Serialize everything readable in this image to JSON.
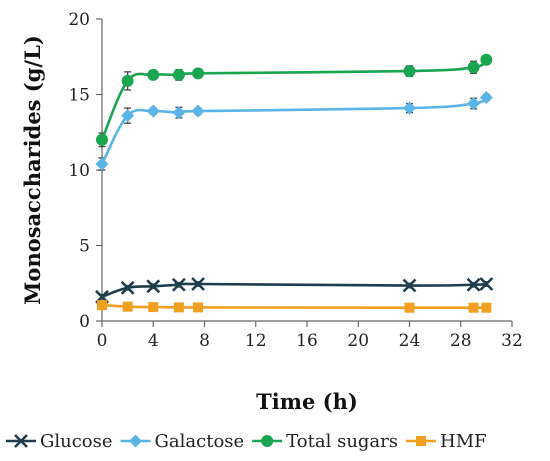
{
  "chart_data": {
    "type": "line",
    "xlabel": "Time (h)",
    "ylabel": "Monosaccharides (g/L)",
    "xlim": [
      0,
      32
    ],
    "ylim": [
      0,
      20
    ],
    "xticks": [
      0,
      4,
      8,
      12,
      16,
      20,
      24,
      28,
      32
    ],
    "yticks": [
      0,
      5,
      10,
      15,
      20
    ],
    "grid": false,
    "legend_position": "bottom",
    "series": [
      {
        "name": "Glucose",
        "marker": "x",
        "color": "#1f3d4c",
        "x": [
          0,
          2,
          4,
          6,
          7.5,
          24,
          29,
          30
        ],
        "y": [
          1.6,
          2.2,
          2.3,
          2.4,
          2.45,
          2.35,
          2.4,
          2.45
        ],
        "err": [
          0.15,
          0.15,
          0.15,
          0.15,
          0.15,
          0.15,
          0.15,
          0.15
        ]
      },
      {
        "name": "Galactose",
        "marker": "diamond",
        "color": "#5ab4e5",
        "x": [
          0,
          2,
          4,
          6,
          7.5,
          24,
          29,
          30
        ],
        "y": [
          10.4,
          13.6,
          13.9,
          13.8,
          13.9,
          14.1,
          14.4,
          14.8
        ],
        "err": [
          0.4,
          0.5,
          0.2,
          0.35,
          0.2,
          0.3,
          0.35,
          0.2
        ]
      },
      {
        "name": "Total sugars",
        "marker": "circle",
        "color": "#1aa550",
        "x": [
          0,
          2,
          4,
          6,
          7.5,
          24,
          29,
          30
        ],
        "y": [
          12.0,
          15.9,
          16.3,
          16.3,
          16.4,
          16.55,
          16.8,
          17.3
        ],
        "err": [
          0.45,
          0.6,
          0.2,
          0.35,
          0.2,
          0.35,
          0.4,
          0.25
        ]
      },
      {
        "name": "HMF",
        "marker": "square",
        "color": "#f0a01e",
        "x": [
          0,
          2,
          4,
          6,
          7.5,
          24,
          29,
          30
        ],
        "y": [
          1.05,
          0.95,
          0.92,
          0.9,
          0.9,
          0.88,
          0.88,
          0.88
        ],
        "err": [
          0.05,
          0.05,
          0.05,
          0.05,
          0.05,
          0.05,
          0.05,
          0.05
        ]
      }
    ]
  }
}
